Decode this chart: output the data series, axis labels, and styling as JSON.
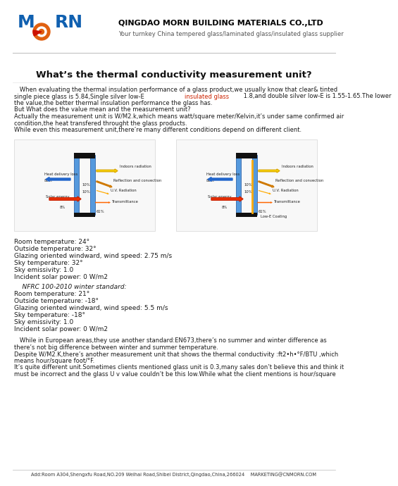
{
  "bg_color": "#ffffff",
  "header_company": "QINGDAO MORN BUILDING MATERIALS CO.,LTD",
  "header_sub": "Your turnkey China tempered glass/laminated glass/insulated glass supplier",
  "title": "What’s the thermal conductivity measurement unit?",
  "para1_before": "   When evaluating the thermal insulation performance of a glass product,we usually know that clear& tinted\nsingle piece glass is 5.84,Single silver low-E ",
  "para1_highlight": "insulated glass",
  "para1_after": " 1.8,and double silver low-E is 1.55-1.65.The lower\nthe value,the better thermal insulation performance the glass has.\nBut What does the value mean and the measurement unit?\nActually the measurement unit is W/M2.k,which means watt/square meter/Kelvin,it’s under same confirmed air\ncondition,the heat transfered throught the glass products.\nWhile even this measurement unit,there’re many different conditions depend on different client.",
  "conditions1_lines": [
    "Room temperature: 24°",
    "Outside temperature: 32°",
    "Glazing oriented windward, wind speed: 2.75 m/s",
    "Sky temperature: 32°",
    "Sky emissivity: 1.0",
    "Incident solar power: 0 W/m2"
  ],
  "nfrc_header": "    NFRC 100-2010 winter standard:",
  "conditions2_lines": [
    "Room temperature: 21°",
    "Outside temperature: -18°",
    "Glazing oriented windward, wind speed: 5.5 m/s",
    "Sky temperature: -18°",
    "Sky emissivity: 1.0",
    "Incident solar power: 0 W/m2"
  ],
  "para2_lines": [
    "   While in European areas,they use another standard:EN673,there’s no summer and winter difference as",
    "there’s not big difference between winter and summer temperature.",
    "Despite W/M2.K,there’s another measurement unit that shows the thermal conductivity :ft2•h•°F/BTU ,which",
    "means hour/square foot/°F.",
    "It’s quite different unit.Sometimes clients mentioned glass unit is 0.3,many sales don’t believe this and think it",
    "must be incorrect and the glass U v value couldn’t be this low.While what the client mentions is hour/square"
  ],
  "footer": "Add:Room A304,Shengxfu Road,NO.209 Weihai Road,Shibei District,Qingdao,China,266024    MARKETING@CNMORN.COM",
  "text_color": "#1a1a1a",
  "highlight_color": "#cc2200",
  "logo_blue": "#1060b0",
  "logo_orange": "#e06010",
  "company_bold_color": "#000000",
  "sub_color": "#555555",
  "footer_color": "#333333",
  "divider_color": "#bbbbbb",
  "title_color": "#111111"
}
